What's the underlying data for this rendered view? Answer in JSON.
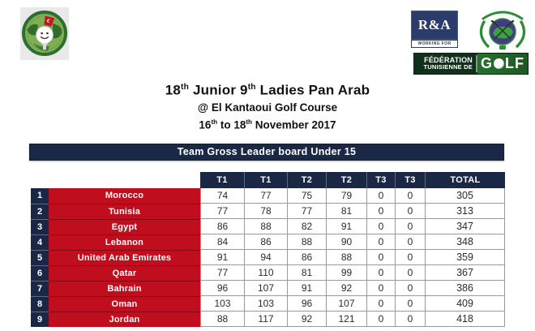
{
  "colors": {
    "navy": "#1b2845",
    "red": "#c10e1e",
    "table_border": "#9a9a9a",
    "ra_navy": "#2b3c6b",
    "green_dark": "#11301c",
    "green": "#2e7d32",
    "emblem_purple": "#453a86"
  },
  "header_logos": {
    "ra": {
      "text": "R&A",
      "tagline": "WORKING FOR GOLF"
    },
    "ftg": {
      "line1": "FÉDÉRATION",
      "line2": "TUNISIENNE DE",
      "golf_g": "G",
      "golf_lf": "LF"
    }
  },
  "title": {
    "l1_a": "18",
    "l1_a_sup": "th",
    "l1_b": " Junior 9",
    "l1_b_sup": "th",
    "l1_c": " Ladies Pan Arab",
    "line2": "@ El Kantaoui Golf Course",
    "l3_a": "16",
    "l3_a_sup": "th",
    "l3_b": " to 18",
    "l3_b_sup": "th",
    "l3_c": " November 2017"
  },
  "banner": {
    "text": "Team Gross Leader board Under 15"
  },
  "table": {
    "headers": [
      "T1",
      "T1",
      "T2",
      "T2",
      "T3",
      "T3",
      "TOTAL"
    ],
    "rows": [
      {
        "rank": "1",
        "team": "Morocco",
        "scores": [
          "74",
          "77",
          "75",
          "79",
          "0",
          "0"
        ],
        "total": "305"
      },
      {
        "rank": "2",
        "team": "Tunisia",
        "scores": [
          "77",
          "78",
          "77",
          "81",
          "0",
          "0"
        ],
        "total": "313"
      },
      {
        "rank": "3",
        "team": "Egypt",
        "scores": [
          "86",
          "88",
          "82",
          "91",
          "0",
          "0"
        ],
        "total": "347"
      },
      {
        "rank": "4",
        "team": "Lebanon",
        "scores": [
          "84",
          "86",
          "88",
          "90",
          "0",
          "0"
        ],
        "total": "348"
      },
      {
        "rank": "5",
        "team": "United Arab Emirates",
        "scores": [
          "91",
          "94",
          "86",
          "88",
          "0",
          "0"
        ],
        "total": "359"
      },
      {
        "rank": "6",
        "team": "Qatar",
        "scores": [
          "77",
          "110",
          "81",
          "99",
          "0",
          "0"
        ],
        "total": "367"
      },
      {
        "rank": "7",
        "team": "Bahrain",
        "scores": [
          "96",
          "107",
          "91",
          "92",
          "0",
          "0"
        ],
        "total": "386"
      },
      {
        "rank": "8",
        "team": "Oman",
        "scores": [
          "103",
          "103",
          "96",
          "107",
          "0",
          "0"
        ],
        "total": "409"
      },
      {
        "rank": "9",
        "team": "Jordan",
        "scores": [
          "88",
          "117",
          "92",
          "121",
          "0",
          "0"
        ],
        "total": "418"
      }
    ]
  }
}
